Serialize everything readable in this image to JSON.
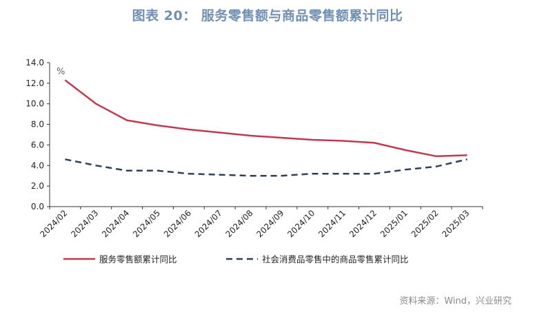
{
  "title": "图表 20： 服务零售额与商品零售额累计同比",
  "source": "资料来源：Wind，兴业研究",
  "chart_data": {
    "type": "line",
    "unit": "%",
    "x": [
      "2024/02",
      "2024/03",
      "2024/04",
      "2024/05",
      "2024/06",
      "2024/07",
      "2024/08",
      "2024/09",
      "2024/10",
      "2024/11",
      "2024/12",
      "2025/01",
      "2025/02",
      "2025/03"
    ],
    "ylim": [
      0,
      14
    ],
    "yticks": [
      "0.0",
      "2.0",
      "4.0",
      "6.0",
      "8.0",
      "10.0",
      "12.0",
      "14.0"
    ],
    "grid": false,
    "legend_position": "bottom",
    "series": [
      {
        "name": "服务零售额累计同比",
        "color": "#c0394f",
        "style": "solid",
        "values": [
          12.3,
          10.0,
          8.4,
          7.9,
          7.5,
          7.2,
          6.9,
          6.7,
          6.5,
          6.4,
          6.2,
          5.5,
          4.9,
          5.0
        ]
      },
      {
        "name": "社会消费品零售中的商品零售累计同比",
        "color": "#2e3f5c",
        "style": "dashed",
        "values": [
          4.6,
          4.0,
          3.5,
          3.5,
          3.2,
          3.1,
          3.0,
          3.0,
          3.2,
          3.2,
          3.2,
          3.6,
          3.9,
          4.6
        ]
      }
    ]
  }
}
